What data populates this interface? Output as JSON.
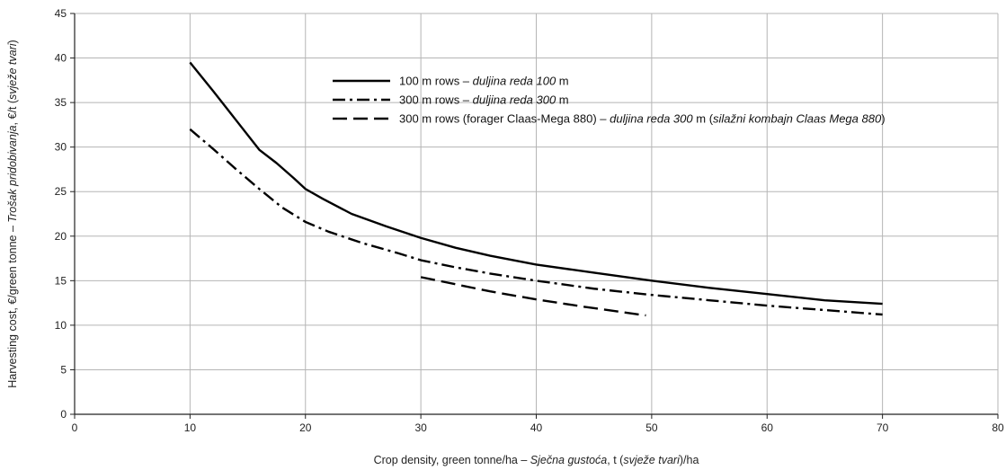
{
  "chart_data": {
    "type": "line",
    "title": "",
    "xlabel_parts": [
      {
        "text": "Crop density, green tonne/ha – ",
        "italic": false
      },
      {
        "text": "Sječna gustoća",
        "italic": true
      },
      {
        "text": ", t (",
        "italic": false
      },
      {
        "text": "svježe tvari",
        "italic": true
      },
      {
        "text": ")/ha",
        "italic": false
      }
    ],
    "ylabel_parts": [
      {
        "text": "Harvesting cost, €/green tonne – ",
        "italic": false
      },
      {
        "text": "Trošak pridobivanja",
        "italic": true
      },
      {
        "text": ", €/t (",
        "italic": false
      },
      {
        "text": "svježe tvari",
        "italic": true
      },
      {
        "text": ")",
        "italic": false
      }
    ],
    "xlim": [
      0,
      80
    ],
    "ylim": [
      0,
      45
    ],
    "xticks": [
      0,
      10,
      20,
      30,
      40,
      50,
      60,
      70,
      80
    ],
    "yticks": [
      0,
      5,
      10,
      15,
      20,
      25,
      30,
      35,
      40,
      45
    ],
    "grid": true,
    "legend_position": "top-center",
    "series": [
      {
        "dash": "solid",
        "color": "#000000",
        "legend_parts": [
          {
            "text": "100 m rows – ",
            "italic": false
          },
          {
            "text": "duljina reda 100",
            "italic": true
          },
          {
            "text": " m",
            "italic": false
          }
        ],
        "x": [
          10,
          12,
          14,
          16,
          17.5,
          19,
          20,
          21.5,
          24,
          27,
          30,
          33,
          36,
          40,
          45,
          50,
          55,
          60,
          65,
          70
        ],
        "y": [
          39.5,
          36.3,
          33.0,
          29.7,
          28.2,
          26.5,
          25.3,
          24.2,
          22.5,
          21.1,
          19.8,
          18.7,
          17.8,
          16.8,
          15.9,
          15.0,
          14.2,
          13.5,
          12.8,
          12.4
        ]
      },
      {
        "dash": "dash-dot",
        "color": "#000000",
        "legend_parts": [
          {
            "text": "300 m rows – ",
            "italic": false
          },
          {
            "text": "duljina reda 300",
            "italic": true
          },
          {
            "text": " m",
            "italic": false
          }
        ],
        "x": [
          10,
          12,
          14,
          16,
          18,
          20,
          22,
          25,
          28,
          30,
          33,
          36,
          40,
          45,
          50,
          55,
          60,
          65,
          70
        ],
        "y": [
          32.0,
          29.8,
          27.5,
          25.3,
          23.2,
          21.6,
          20.5,
          19.2,
          18.1,
          17.3,
          16.5,
          15.8,
          15.0,
          14.1,
          13.4,
          12.8,
          12.2,
          11.7,
          11.2
        ]
      },
      {
        "dash": "dash",
        "color": "#000000",
        "legend_parts": [
          {
            "text": "300 m rows (forager Claas-Mega 880) – ",
            "italic": false
          },
          {
            "text": "duljina reda 300",
            "italic": true
          },
          {
            "text": " m (",
            "italic": false
          },
          {
            "text": "silažni kombajn Claas Mega 880",
            "italic": true
          },
          {
            "text": ")",
            "italic": false
          }
        ],
        "x": [
          30,
          33,
          36,
          40,
          44,
          49.5
        ],
        "y": [
          15.4,
          14.6,
          13.8,
          12.9,
          12.1,
          11.1
        ]
      }
    ]
  }
}
